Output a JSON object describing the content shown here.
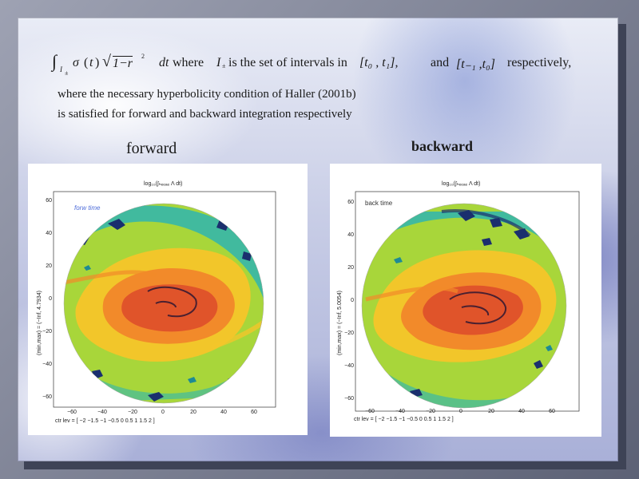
{
  "formula": {
    "integral_sign": "∫",
    "subscript_I": "I",
    "subscript_pm": "±",
    "sigma": "σ",
    "t_open": "(",
    "t_var": "t",
    "t_close": ")",
    "sqrt_sign": "√",
    "sqrt_body": "1−r",
    "exponent": "2",
    "dt": "dt",
    "where_text": "where",
    "I_letter": "I",
    "I_sub": "±",
    "intervals_text": "is the set of intervals in",
    "interval1": "[t₀ , t₁],",
    "and_text": "and",
    "interval2": "[t₋₁ ,t₀]",
    "respectively_text": "respectively,"
  },
  "body": {
    "line1": "where the necessary hyperbolicity condition of Haller (2001b)",
    "line2": "is satisfied for forward and backward integration respectively"
  },
  "panels": {
    "forward_label": "forward",
    "backward_label": "backward",
    "forward": {
      "title": "log₁₀(∫ₕₑₑₐₑ Λ dt)",
      "inset_text": "forw time",
      "ylabel": "(min,max) = (−Inf, 4.7934)",
      "xlabel": "ctr lev = [ −2     −1.5     −1     −0.5     0     0.5     1     1.5     2 ]",
      "xticks": [
        "−60",
        "−40",
        "−20",
        "0",
        "20",
        "40",
        "60"
      ],
      "yticks": [
        "60",
        "40",
        "20",
        "0",
        "−20",
        "−40",
        "−60"
      ]
    },
    "backward": {
      "title": "log₁₀(∫ₕₑₑₐₑ Λ dt)",
      "inset_text": "back time",
      "ylabel": "(min,max) = (−Inf, 5.0054)",
      "xlabel": "ctr lev = [ −2     −1.5     −1     −0.5     0     0.5     1     1.5     2 ]",
      "xticks": [
        "−60",
        "−40",
        "−20",
        "0",
        "20",
        "40",
        "60"
      ],
      "yticks": [
        "60",
        "40",
        "20",
        "0",
        "−20",
        "−40",
        "−60"
      ]
    }
  },
  "colors": {
    "outer_band": "#a8d63a",
    "cyan": "#2fb5b0",
    "teal": "#1e8a94",
    "navy": "#1a2f6e",
    "yellow": "#f2c62a",
    "orange": "#f28a2a",
    "red": "#e0542a",
    "dark": "#4a2030"
  }
}
